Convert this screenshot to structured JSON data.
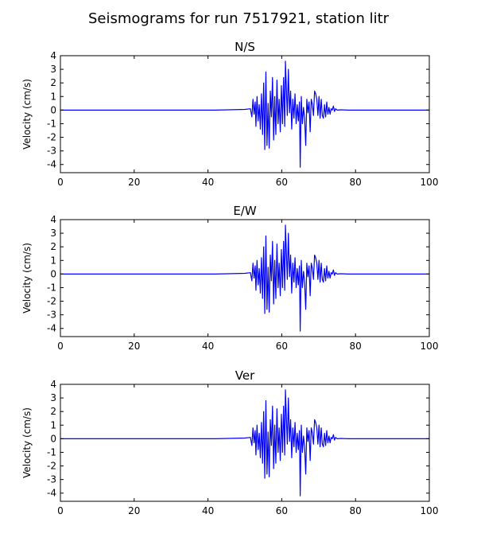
{
  "figure": {
    "title": "Seismograms for run 7517921, station litr"
  },
  "chart_data": [
    {
      "type": "line",
      "title": "N/S",
      "xlabel": "",
      "ylabel": "Velocity (cm/s)",
      "xlim": [
        0,
        100
      ],
      "ylim": [
        -4.6,
        4
      ],
      "xticks": [
        0,
        20,
        40,
        60,
        80,
        100
      ],
      "yticks": [
        4,
        3,
        2,
        1,
        0,
        -1,
        -2,
        -3,
        -4
      ],
      "grid": false,
      "line_color": "#0000ff",
      "x": [
        0,
        42,
        50,
        51.5,
        51.9,
        52.2,
        52.5,
        52.8,
        53.0,
        53.3,
        53.6,
        53.9,
        54.2,
        54.5,
        54.8,
        55.1,
        55.4,
        55.7,
        56.0,
        56.3,
        56.6,
        56.9,
        57.2,
        57.5,
        57.8,
        58.1,
        58.4,
        58.7,
        59.0,
        59.3,
        59.6,
        59.9,
        60.2,
        60.5,
        60.8,
        61.0,
        61.2,
        61.5,
        61.8,
        62.1,
        62.4,
        62.7,
        63.0,
        63.3,
        63.6,
        63.9,
        64.2,
        64.5,
        64.8,
        65.0,
        65.3,
        65.6,
        65.9,
        66.2,
        66.5,
        66.8,
        67.1,
        67.4,
        67.7,
        68.0,
        68.3,
        68.6,
        68.9,
        69.2,
        69.5,
        69.8,
        70.1,
        70.4,
        70.7,
        71.0,
        71.3,
        71.6,
        71.9,
        72.2,
        72.5,
        72.8,
        73.1,
        73.4,
        73.7,
        74.0,
        74.3,
        74.6,
        75.0,
        76,
        78,
        80,
        90,
        100
      ],
      "y": [
        0,
        0,
        0.05,
        0.1,
        -0.5,
        0.8,
        -0.3,
        0.6,
        -1.2,
        1.0,
        -0.8,
        0.4,
        -1.4,
        1.2,
        -1.8,
        2.0,
        -2.9,
        2.8,
        -2.6,
        0.5,
        -2.8,
        1.4,
        -0.5,
        2.4,
        -2.2,
        1.0,
        -1.8,
        2.2,
        -1.0,
        0.8,
        -1.6,
        1.8,
        -1.0,
        2.4,
        -1.2,
        3.6,
        2.0,
        -0.4,
        3.0,
        -0.2,
        1.4,
        -1.4,
        0.8,
        -0.6,
        1.2,
        -1.0,
        0.4,
        -0.8,
        0.6,
        -4.2,
        1.0,
        -1.0,
        0.2,
        -0.6,
        -2.6,
        0.8,
        -0.2,
        0.6,
        -1.6,
        0.8,
        0.4,
        -0.4,
        1.4,
        1.2,
        0.8,
        -0.4,
        1.0,
        -0.6,
        0.8,
        -0.4,
        -0.6,
        0.4,
        -0.5,
        0.6,
        -0.3,
        0.2,
        -0.3,
        0.1,
        0.0,
        0.3,
        -0.1,
        0.1,
        0.0,
        0.02,
        0,
        0,
        0,
        0
      ]
    },
    {
      "type": "line",
      "title": "E/W",
      "xlabel": "",
      "ylabel": "Velocity (cm/s)",
      "xlim": [
        0,
        100
      ],
      "ylim": [
        -4.6,
        4
      ],
      "xticks": [
        0,
        20,
        40,
        60,
        80,
        100
      ],
      "yticks": [
        4,
        3,
        2,
        1,
        0,
        -1,
        -2,
        -3,
        -4
      ],
      "grid": false,
      "line_color": "#0000ff",
      "x": [
        0,
        42,
        50,
        51.5,
        51.9,
        52.2,
        52.5,
        52.8,
        53.0,
        53.3,
        53.6,
        53.9,
        54.2,
        54.5,
        54.8,
        55.1,
        55.4,
        55.7,
        56.0,
        56.3,
        56.6,
        56.9,
        57.2,
        57.5,
        57.8,
        58.1,
        58.4,
        58.7,
        59.0,
        59.3,
        59.6,
        59.9,
        60.2,
        60.5,
        60.8,
        61.0,
        61.2,
        61.5,
        61.8,
        62.1,
        62.4,
        62.7,
        63.0,
        63.3,
        63.6,
        63.9,
        64.2,
        64.5,
        64.8,
        65.0,
        65.3,
        65.6,
        65.9,
        66.2,
        66.5,
        66.8,
        67.1,
        67.4,
        67.7,
        68.0,
        68.3,
        68.6,
        68.9,
        69.2,
        69.5,
        69.8,
        70.1,
        70.4,
        70.7,
        71.0,
        71.3,
        71.6,
        71.9,
        72.2,
        72.5,
        72.8,
        73.1,
        73.4,
        73.7,
        74.0,
        74.3,
        74.6,
        75.0,
        76,
        78,
        80,
        90,
        100
      ],
      "y": [
        0,
        0,
        0.05,
        0.1,
        -0.5,
        0.8,
        -0.3,
        0.6,
        -1.2,
        1.0,
        -0.8,
        0.4,
        -1.4,
        1.2,
        -1.8,
        2.0,
        -2.9,
        2.8,
        -2.6,
        0.5,
        -2.8,
        1.4,
        -0.5,
        2.4,
        -2.2,
        1.0,
        -1.8,
        2.2,
        -1.0,
        0.8,
        -1.6,
        1.8,
        -1.0,
        2.4,
        -1.2,
        3.6,
        2.0,
        -0.4,
        3.0,
        -0.2,
        1.4,
        -1.4,
        0.8,
        -0.6,
        1.2,
        -1.0,
        0.4,
        -0.8,
        0.6,
        -4.2,
        1.0,
        -1.0,
        0.2,
        -0.6,
        -2.6,
        0.8,
        -0.2,
        0.6,
        -1.6,
        0.8,
        0.4,
        -0.4,
        1.4,
        1.2,
        0.8,
        -0.4,
        1.0,
        -0.6,
        0.8,
        -0.4,
        -0.6,
        0.4,
        -0.5,
        0.6,
        -0.3,
        0.2,
        -0.3,
        0.1,
        0.0,
        0.3,
        -0.1,
        0.1,
        0.0,
        0.02,
        0,
        0,
        0,
        0
      ]
    },
    {
      "type": "line",
      "title": "Ver",
      "xlabel": "",
      "ylabel": "Velocity (cm/s)",
      "xlim": [
        0,
        100
      ],
      "ylim": [
        -4.6,
        4
      ],
      "xticks": [
        0,
        20,
        40,
        60,
        80,
        100
      ],
      "yticks": [
        4,
        3,
        2,
        1,
        0,
        -1,
        -2,
        -3,
        -4
      ],
      "grid": false,
      "line_color": "#0000ff",
      "x": [
        0,
        42,
        50,
        51.5,
        51.9,
        52.2,
        52.5,
        52.8,
        53.0,
        53.3,
        53.6,
        53.9,
        54.2,
        54.5,
        54.8,
        55.1,
        55.4,
        55.7,
        56.0,
        56.3,
        56.6,
        56.9,
        57.2,
        57.5,
        57.8,
        58.1,
        58.4,
        58.7,
        59.0,
        59.3,
        59.6,
        59.9,
        60.2,
        60.5,
        60.8,
        61.0,
        61.2,
        61.5,
        61.8,
        62.1,
        62.4,
        62.7,
        63.0,
        63.3,
        63.6,
        63.9,
        64.2,
        64.5,
        64.8,
        65.0,
        65.3,
        65.6,
        65.9,
        66.2,
        66.5,
        66.8,
        67.1,
        67.4,
        67.7,
        68.0,
        68.3,
        68.6,
        68.9,
        69.2,
        69.5,
        69.8,
        70.1,
        70.4,
        70.7,
        71.0,
        71.3,
        71.6,
        71.9,
        72.2,
        72.5,
        72.8,
        73.1,
        73.4,
        73.7,
        74.0,
        74.3,
        74.6,
        75.0,
        76,
        78,
        80,
        90,
        100
      ],
      "y": [
        0,
        0,
        0.05,
        0.1,
        -0.5,
        0.8,
        -0.3,
        0.6,
        -1.2,
        1.0,
        -0.8,
        0.4,
        -1.4,
        1.2,
        -1.8,
        2.0,
        -2.9,
        2.8,
        -2.6,
        0.5,
        -2.8,
        1.4,
        -0.5,
        2.4,
        -2.2,
        1.0,
        -1.8,
        2.2,
        -1.0,
        0.8,
        -1.6,
        1.8,
        -1.0,
        2.4,
        -1.2,
        3.6,
        2.0,
        -0.4,
        3.0,
        -0.2,
        1.4,
        -1.4,
        0.8,
        -0.6,
        1.2,
        -1.0,
        0.4,
        -0.8,
        0.6,
        -4.2,
        1.0,
        -1.0,
        0.2,
        -0.6,
        -2.6,
        0.8,
        -0.2,
        0.6,
        -1.6,
        0.8,
        0.4,
        -0.4,
        1.4,
        1.2,
        0.8,
        -0.4,
        1.0,
        -0.6,
        0.8,
        -0.4,
        -0.6,
        0.4,
        -0.5,
        0.6,
        -0.3,
        0.2,
        -0.3,
        0.1,
        0.0,
        0.3,
        -0.1,
        0.1,
        0.0,
        0.02,
        0,
        0,
        0,
        0
      ]
    }
  ]
}
